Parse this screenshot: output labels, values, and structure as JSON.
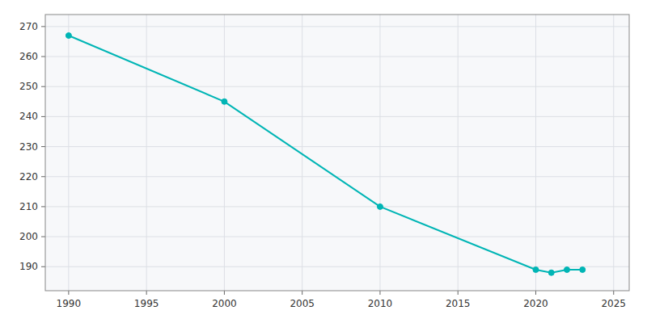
{
  "chart_data": {
    "type": "line",
    "x": [
      1990,
      2000,
      2010,
      2020,
      2021,
      2022,
      2023
    ],
    "values": [
      267,
      245,
      210,
      189,
      188,
      189,
      189
    ],
    "color": "#00B5B5",
    "marker": "circle",
    "xlim": [
      1988.5,
      2026
    ],
    "ylim": [
      182,
      274
    ],
    "xticks": [
      1990,
      1995,
      2000,
      2005,
      2010,
      2015,
      2020,
      2025
    ],
    "yticks": [
      190,
      200,
      210,
      220,
      230,
      240,
      250,
      260,
      270
    ],
    "grid": true
  }
}
